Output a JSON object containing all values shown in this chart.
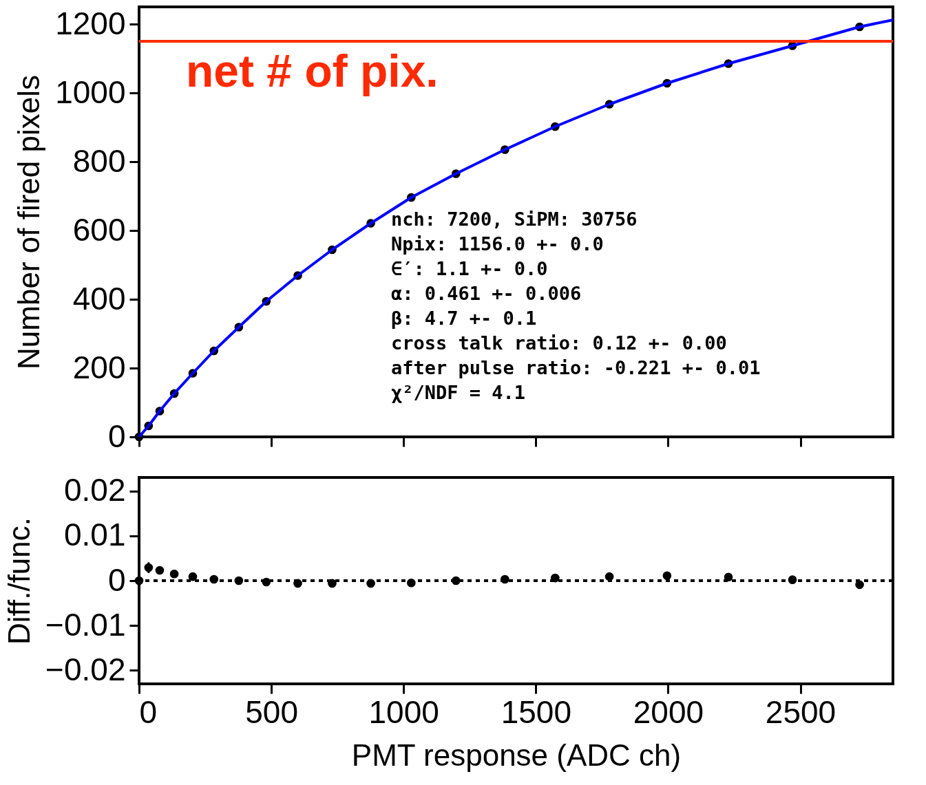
{
  "chart_data": [
    {
      "type": "scatter",
      "ylabel": "Number of fired pixels",
      "xlim": [
        0,
        2850
      ],
      "ylim": [
        0,
        1250
      ],
      "xticks": [
        0,
        500,
        1000,
        1500,
        2000,
        2500
      ],
      "yticks": [
        0,
        200,
        400,
        600,
        800,
        1000,
        1200
      ],
      "tick_labels": "y",
      "grid": false,
      "series": [
        {
          "type": "scatter",
          "marker": "circle",
          "color": "#000000",
          "x": [
            0,
            36,
            78,
            133,
            203,
            283,
            377,
            481,
            600,
            730,
            876,
            1029,
            1198,
            1383,
            1573,
            1778,
            1996,
            2228,
            2470,
            2724
          ],
          "values": [
            0,
            32,
            75,
            126,
            185,
            250,
            319,
            394,
            469,
            544,
            621,
            696,
            765,
            835,
            902,
            967,
            1028,
            1085,
            1137,
            1192
          ]
        },
        {
          "type": "line",
          "marker": "none",
          "color": "#0000ff",
          "line_style": "solid",
          "x": [
            0,
            36,
            78,
            133,
            203,
            283,
            377,
            481,
            600,
            730,
            876,
            1029,
            1198,
            1383,
            1573,
            1778,
            1996,
            2228,
            2470,
            2724,
            2850
          ],
          "values": [
            0,
            32,
            75,
            126,
            185,
            250,
            319,
            394,
            469,
            544,
            621,
            696,
            765,
            835,
            902,
            967,
            1028,
            1085,
            1137,
            1192,
            1212
          ]
        }
      ],
      "ref_lines": [
        {
          "axis": "y",
          "value": 1150,
          "label": "net # of pix.",
          "color": "#ff2a00",
          "line_style": "solid"
        }
      ],
      "annotations": [
        "nch: 7200, SiPM: 30756",
        " Npix: 1156.0 +- 0.0",
        " ∈′: 1.1 +- 0.0",
        " α: 0.461 +- 0.006",
        " β: 4.7 +- 0.1",
        " cross talk ratio: 0.12 +- 0.00",
        " after pulse ratio: -0.221 +- 0.01",
        " χ²/NDF = 4.1"
      ]
    },
    {
      "type": "scatter",
      "xlabel": "PMT response  (ADC ch)",
      "ylabel": "Diff./func.",
      "xlim": [
        0,
        2850
      ],
      "ylim": [
        -0.023,
        0.023
      ],
      "xticks": [
        0,
        500,
        1000,
        1500,
        2000,
        2500
      ],
      "yticks": [
        {
          "value": 0.02,
          "label": "0.02"
        },
        {
          "value": 0.01,
          "label": "0.01"
        },
        0,
        {
          "value": -0.01,
          "label": "−0.01"
        },
        {
          "value": -0.02,
          "label": "−0.02"
        }
      ],
      "grid": false,
      "marker": "circle",
      "series": [
        {
          "type": "scatter",
          "color": "#000000",
          "x": [
            0,
            36,
            78,
            133,
            203,
            283,
            377,
            481,
            600,
            730,
            876,
            1029,
            1198,
            1383,
            1573,
            1778,
            1996,
            2228,
            2470,
            2724
          ],
          "values": [
            0,
            0.0029,
            0.0023,
            0.0015,
            0.0009,
            0.0003,
            0,
            -0.0003,
            -0.0006,
            -0.0006,
            -0.0006,
            -0.0005,
            0,
            0.0003,
            0.0006,
            0.0009,
            0.0011,
            0.0008,
            0.0002,
            -0.0009
          ],
          "errors": [
            null,
            0.0012,
            0.0009,
            null,
            null,
            null,
            null,
            null,
            null,
            null,
            null,
            null,
            null,
            null,
            null,
            null,
            null,
            null,
            null,
            null
          ]
        }
      ],
      "ref_lines": [
        {
          "axis": "y",
          "value": 0,
          "color": "#000000",
          "line_style": "dashed"
        }
      ]
    }
  ]
}
